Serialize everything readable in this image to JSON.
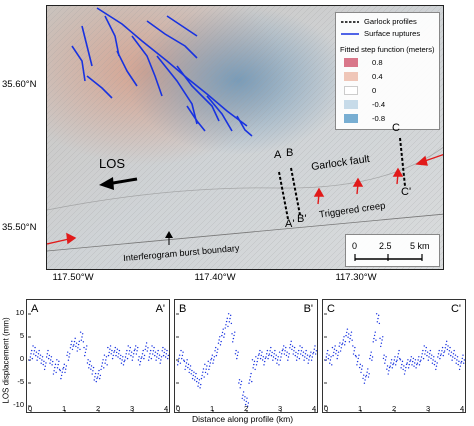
{
  "map": {
    "lat_labels": [
      "35.60°N",
      "35.50°N"
    ],
    "lon_labels": [
      "117.50°W",
      "117.40°W",
      "117.30°W"
    ],
    "profile_labels": [
      "A",
      "B",
      "C",
      "A'",
      "B'",
      "C'"
    ],
    "los_label": "LOS",
    "fault_label": "Garlock fault",
    "creep_label": "Triggered creep",
    "boundary_label": "Interferogram burst boundary",
    "legend": {
      "profiles": "Garlock profiles",
      "ruptures": "Surface ruptures",
      "title": "Fitted step function (meters)",
      "scale": [
        "0.8",
        "0.4",
        "0",
        "-0.4",
        "-0.8"
      ],
      "scale_colors": [
        "#d9778a",
        "#efc6b8",
        "#ffffff",
        "#c7dbe9",
        "#78aed2"
      ]
    },
    "scale_bar": {
      "ticks": [
        "0",
        "2.5",
        "5 km"
      ]
    },
    "colors": {
      "rupture": "#1832e0",
      "arrow_red": "#e11a1a",
      "profile": "#000000"
    }
  },
  "chart_data": [
    {
      "type": "scatter",
      "panel": "A",
      "start_label": "A",
      "end_label": "A'",
      "xlabel": "",
      "ylabel": "LOS displacement (mm)",
      "xlim": [
        0,
        4
      ],
      "ylim": [
        -10,
        10
      ],
      "xticks": [
        "0",
        "1",
        "2",
        "3",
        "4"
      ],
      "yticks": [
        "-10",
        "-5",
        "0",
        "5",
        "10"
      ],
      "x": [
        0.0,
        0.1,
        0.2,
        0.3,
        0.4,
        0.5,
        0.6,
        0.7,
        0.8,
        0.9,
        1.0,
        1.1,
        1.2,
        1.3,
        1.4,
        1.5,
        1.6,
        1.7,
        1.8,
        1.9,
        2.0,
        2.1,
        2.2,
        2.3,
        2.4,
        2.5,
        2.6,
        2.7,
        2.8,
        2.9,
        3.0,
        3.1,
        3.2,
        3.3,
        3.4,
        3.5,
        3.6,
        3.7,
        3.8,
        3.9,
        4.0
      ],
      "y": [
        1,
        2,
        1,
        0,
        -1,
        1,
        0,
        -2,
        -1,
        -3,
        -2,
        1,
        3,
        4,
        3,
        5,
        2,
        -1,
        -2,
        -4,
        -3,
        -1,
        0,
        2,
        1,
        2,
        1,
        0,
        1,
        2,
        1,
        2,
        0,
        1,
        3,
        1,
        2,
        1,
        0,
        2,
        1
      ]
    },
    {
      "type": "scatter",
      "panel": "B",
      "start_label": "B",
      "end_label": "B'",
      "xlabel": "Distance along profile (km)",
      "ylabel": "",
      "xlim": [
        0,
        4
      ],
      "ylim": [
        -10,
        10
      ],
      "xticks": [
        "0",
        "1",
        "2",
        "3",
        "4"
      ],
      "yticks": [
        "-10",
        "-5",
        "0",
        "5",
        "10"
      ],
      "x": [
        0.0,
        0.1,
        0.2,
        0.3,
        0.4,
        0.5,
        0.6,
        0.7,
        0.8,
        0.9,
        1.0,
        1.1,
        1.2,
        1.3,
        1.4,
        1.5,
        1.6,
        1.7,
        1.8,
        1.9,
        2.0,
        2.1,
        2.2,
        2.3,
        2.4,
        2.5,
        2.6,
        2.7,
        2.8,
        2.9,
        3.0,
        3.1,
        3.2,
        3.3,
        3.4,
        3.5,
        3.6,
        3.7,
        3.8,
        3.9,
        4.0
      ],
      "y": [
        0,
        1,
        -1,
        -2,
        -3,
        -4,
        -5,
        -3,
        -2,
        -1,
        0,
        2,
        4,
        6,
        8,
        9,
        5,
        1,
        -5,
        -8,
        -9,
        -4,
        -1,
        0,
        1,
        0,
        1,
        2,
        1,
        0,
        1,
        2,
        1,
        3,
        2,
        1,
        2,
        1,
        0,
        1,
        2
      ]
    },
    {
      "type": "scatter",
      "panel": "C",
      "start_label": "C",
      "end_label": "C'",
      "xlabel": "",
      "ylabel": "",
      "xlim": [
        0,
        4
      ],
      "ylim": [
        -10,
        10
      ],
      "xticks": [
        "0",
        "1",
        "2",
        "3",
        "4"
      ],
      "yticks": [
        "-10",
        "-5",
        "0",
        "5",
        "10"
      ],
      "x": [
        0.0,
        0.1,
        0.2,
        0.3,
        0.4,
        0.5,
        0.6,
        0.7,
        0.8,
        0.9,
        1.0,
        1.1,
        1.2,
        1.3,
        1.4,
        1.5,
        1.6,
        1.7,
        1.8,
        1.9,
        2.0,
        2.1,
        2.2,
        2.3,
        2.4,
        2.5,
        2.6,
        2.7,
        2.8,
        2.9,
        3.0,
        3.1,
        3.2,
        3.3,
        3.4,
        3.5,
        3.6,
        3.7,
        3.8,
        3.9,
        4.0
      ],
      "y": [
        1,
        0,
        2,
        1,
        3,
        4,
        6,
        5,
        2,
        0,
        -2,
        -4,
        -3,
        1,
        5,
        9,
        4,
        0,
        -2,
        -1,
        0,
        1,
        -1,
        -2,
        -1,
        0,
        -1,
        0,
        1,
        2,
        1,
        0,
        -1,
        1,
        2,
        3,
        2,
        1,
        0,
        -1,
        0
      ]
    }
  ]
}
